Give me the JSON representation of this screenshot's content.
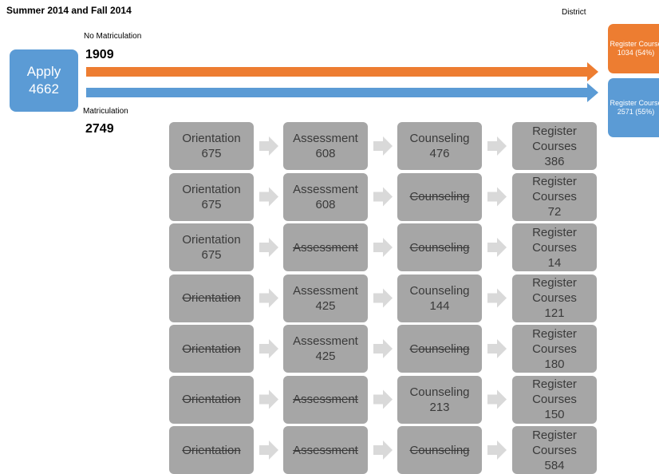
{
  "header": {
    "title": "Summer 2014 and Fall 2014",
    "district": "District"
  },
  "apply": {
    "label": "Apply",
    "value": "4662"
  },
  "no_matriculation": {
    "label": "No Matriculation",
    "value": "1909"
  },
  "matriculation": {
    "label": "Matriculation",
    "value": "2749"
  },
  "outcomes": [
    {
      "label": "Register Course",
      "value": "1034 (54%)",
      "color": "#ed7d31"
    },
    {
      "label": "Register Course",
      "value": "2571 (55%)",
      "color": "#5b9bd5"
    }
  ],
  "grid": {
    "rows": [
      [
        {
          "label": "Orientation",
          "value": "675"
        },
        {
          "label": "Assessment",
          "value": "608"
        },
        {
          "label": "Counseling",
          "value": "476"
        },
        {
          "label": "Register Courses",
          "value": "386"
        }
      ],
      [
        {
          "label": "Orientation",
          "value": "675"
        },
        {
          "label": "Assessment",
          "value": "608"
        },
        {
          "label": "Counseling",
          "struck": true
        },
        {
          "label": "Register Courses",
          "value": "72"
        }
      ],
      [
        {
          "label": "Orientation",
          "value": "675"
        },
        {
          "label": "Assessment",
          "struck": true
        },
        {
          "label": "Counseling",
          "struck": true
        },
        {
          "label": "Register Courses",
          "value": "14"
        }
      ],
      [
        {
          "label": "Orientation",
          "struck": true
        },
        {
          "label": "Assessment",
          "value": "425"
        },
        {
          "label": "Counseling",
          "value": "144"
        },
        {
          "label": "Register Courses",
          "value": "121"
        }
      ],
      [
        {
          "label": "Orientation",
          "struck": true
        },
        {
          "label": "Assessment",
          "value": "425"
        },
        {
          "label": "Counseling",
          "struck": true
        },
        {
          "label": "Register Courses",
          "value": "180"
        }
      ],
      [
        {
          "label": "Orientation",
          "struck": true
        },
        {
          "label": "Assessment",
          "struck": true
        },
        {
          "label": "Counseling",
          "value": "213"
        },
        {
          "label": "Register Courses",
          "value": "150"
        }
      ],
      [
        {
          "label": "Orientation",
          "struck": true
        },
        {
          "label": "Assessment",
          "struck": true
        },
        {
          "label": "Counseling",
          "struck": true
        },
        {
          "label": "Register Courses",
          "value": "584"
        }
      ]
    ]
  }
}
